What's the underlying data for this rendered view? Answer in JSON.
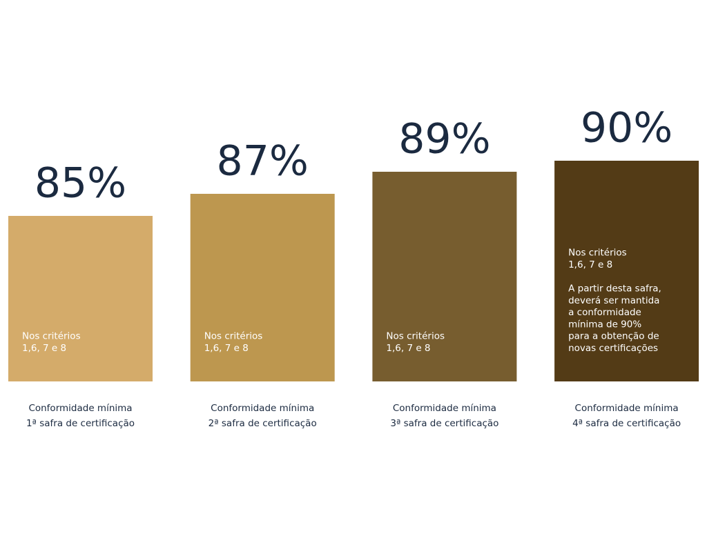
{
  "chart_data": {
    "type": "bar",
    "categories": [
      [
        "Conformidade mínima",
        "1ª safra de certificação"
      ],
      [
        "Conformidade mínima",
        "2ª safra de certificação"
      ],
      [
        "Conformidade mínima",
        "3ª safra de certificação"
      ],
      [
        "Conformidade mínima",
        "4ª safra de certificação"
      ]
    ],
    "values": [
      85,
      87,
      89,
      90
    ],
    "value_labels": [
      "85%",
      "87%",
      "89%",
      "90%"
    ],
    "colors": [
      "#d4ab6a",
      "#bd974f",
      "#775d2f",
      "#533b16"
    ],
    "ylim": [
      70,
      100
    ],
    "bar_notes": [
      [
        [
          "Nos critérios",
          "1,6, 7 e 8"
        ]
      ],
      [
        [
          "Nos critérios",
          "1,6, 7 e 8"
        ]
      ],
      [
        [
          "Nos critérios",
          "1,6, 7 e 8"
        ]
      ],
      [
        [
          "Nos critérios",
          "1,6, 7 e 8"
        ],
        [
          "A partir desta safra,",
          "deverá ser mantida",
          "a conformidade",
          "mínima de 90%",
          "para a obtenção de",
          "novas certificações"
        ]
      ]
    ]
  }
}
